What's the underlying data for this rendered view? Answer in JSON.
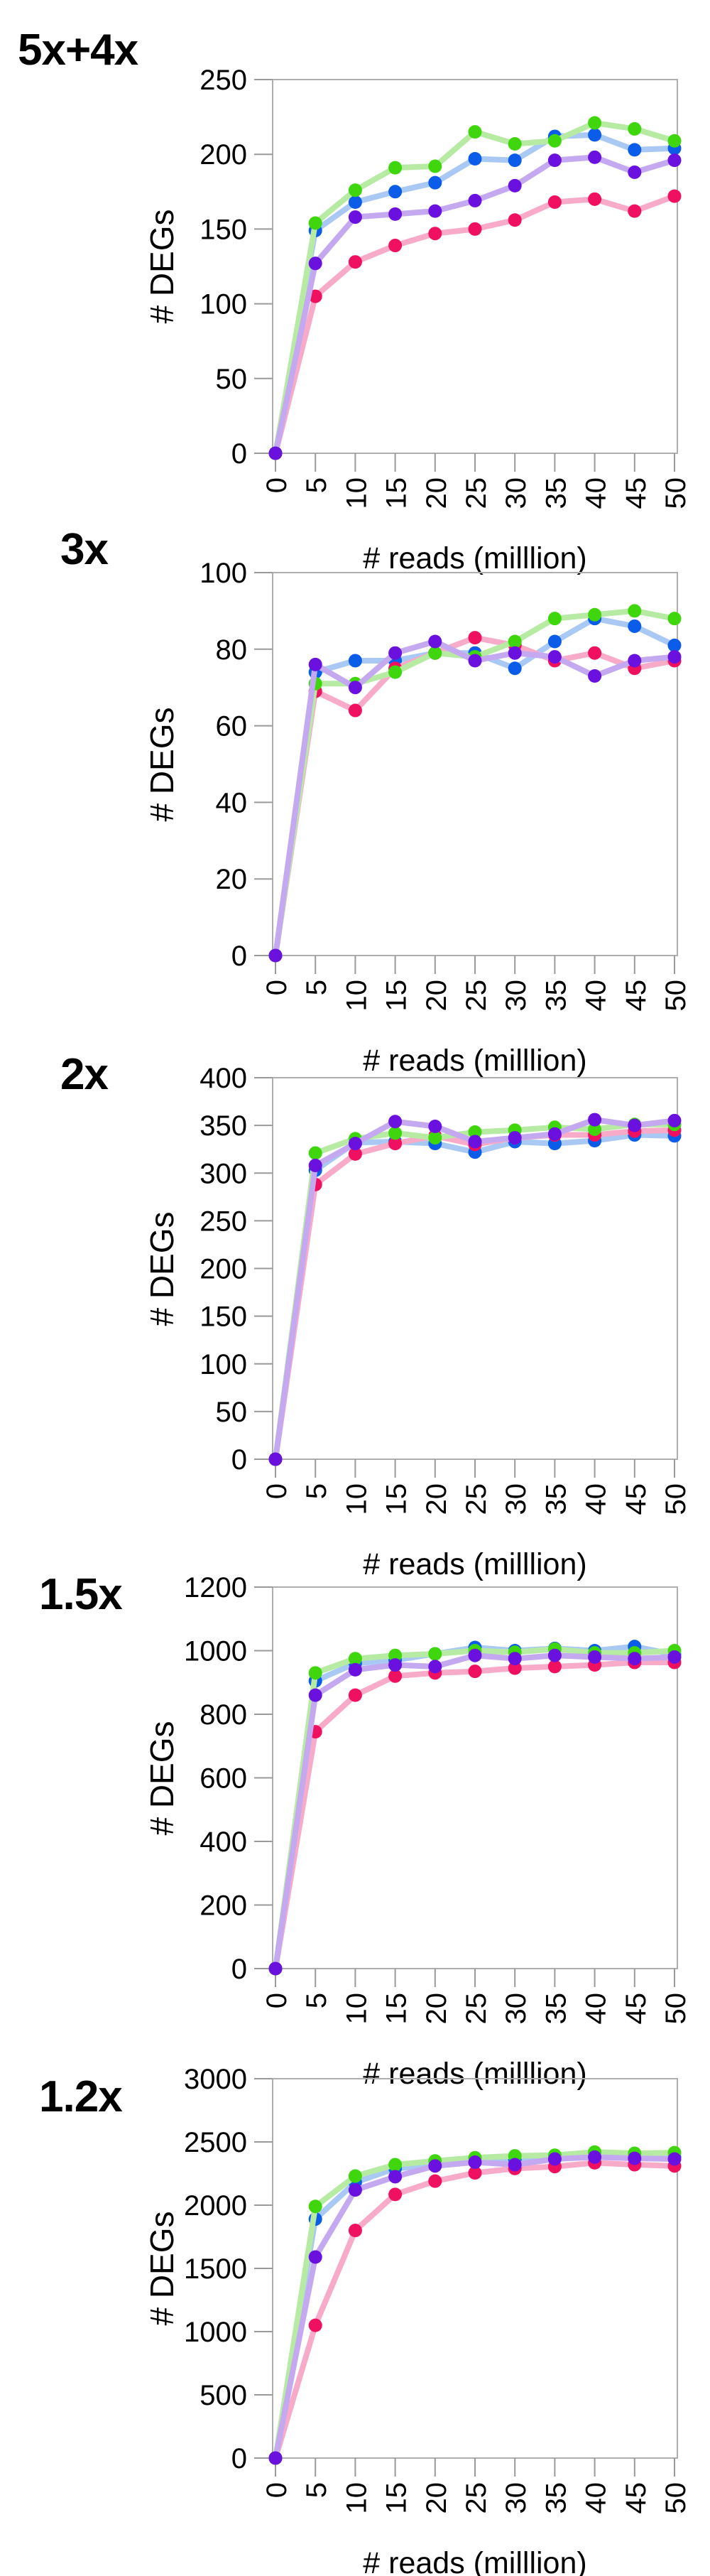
{
  "figure_title": "",
  "axis": {
    "x_label": "# reads (milllion)",
    "y_label": "# DEGs",
    "x_ticks": [
      0,
      5,
      10,
      15,
      20,
      25,
      30,
      35,
      40,
      45,
      50
    ]
  },
  "colors": {
    "frame": "#aeaeae",
    "tick": "#9a9a9a",
    "text": "#000000"
  },
  "chart_data": [
    {
      "type": "line",
      "title": "5x+4x",
      "xlabel": "# reads (milllion)",
      "ylabel": "# DEGs",
      "x": [
        0,
        5,
        10,
        15,
        20,
        25,
        30,
        35,
        40,
        45,
        50
      ],
      "ylim": [
        0,
        250
      ],
      "ytick_step": 50,
      "grid": false,
      "legend": "none",
      "series": [
        {
          "name": "green",
          "marker_color": "#3fd60e",
          "line_color": "#b7eba4",
          "values": [
            0,
            154,
            176,
            191,
            192,
            215,
            207,
            209,
            221,
            217,
            209
          ]
        },
        {
          "name": "blue",
          "marker_color": "#0b5ce8",
          "line_color": "#a9c9f4",
          "values": [
            0,
            149,
            168,
            175,
            181,
            197,
            196,
            212,
            213,
            203,
            204
          ]
        },
        {
          "name": "purple",
          "marker_color": "#6a11e0",
          "line_color": "#c5a9f0",
          "values": [
            0,
            127,
            158,
            160,
            162,
            169,
            179,
            196,
            198,
            188,
            196
          ]
        },
        {
          "name": "pink",
          "marker_color": "#f01060",
          "line_color": "#f8abc9",
          "values": [
            0,
            105,
            128,
            139,
            147,
            150,
            156,
            168,
            170,
            162,
            172
          ]
        }
      ]
    },
    {
      "type": "line",
      "title": "3x",
      "xlabel": "# reads (milllion)",
      "ylabel": "# DEGs",
      "x": [
        0,
        5,
        10,
        15,
        20,
        25,
        30,
        35,
        40,
        45,
        50
      ],
      "ylim": [
        0,
        100
      ],
      "ytick_step": 20,
      "grid": false,
      "legend": "none",
      "series": [
        {
          "name": "green",
          "marker_color": "#3fd60e",
          "line_color": "#b7eba4",
          "values": [
            0,
            71,
            71,
            74,
            79,
            78,
            82,
            88,
            89,
            90,
            88
          ]
        },
        {
          "name": "blue",
          "marker_color": "#0b5ce8",
          "line_color": "#a9c9f4",
          "values": [
            0,
            74,
            77,
            77,
            79,
            79,
            75,
            82,
            88,
            86,
            81
          ]
        },
        {
          "name": "purple",
          "marker_color": "#6a11e0",
          "line_color": "#c5a9f0",
          "values": [
            0,
            76,
            70,
            79,
            82,
            77,
            79,
            78,
            73,
            77,
            78
          ]
        },
        {
          "name": "pink",
          "marker_color": "#f01060",
          "line_color": "#f8abc9",
          "values": [
            0,
            69,
            64,
            75,
            79,
            83,
            81,
            77,
            79,
            75,
            77
          ]
        }
      ]
    },
    {
      "type": "line",
      "title": "2x",
      "xlabel": "# reads (milllion)",
      "ylabel": "# DEGs",
      "x": [
        0,
        5,
        10,
        15,
        20,
        25,
        30,
        35,
        40,
        45,
        50
      ],
      "ylim": [
        0,
        400
      ],
      "ytick_step": 50,
      "grid": false,
      "legend": "none",
      "series": [
        {
          "name": "green",
          "marker_color": "#3fd60e",
          "line_color": "#b7eba4",
          "values": [
            0,
            321,
            336,
            342,
            337,
            343,
            345,
            348,
            346,
            351,
            351
          ]
        },
        {
          "name": "blue",
          "marker_color": "#0b5ce8",
          "line_color": "#a9c9f4",
          "values": [
            0,
            303,
            332,
            333,
            331,
            322,
            333,
            331,
            334,
            340,
            339
          ]
        },
        {
          "name": "purple",
          "marker_color": "#6a11e0",
          "line_color": "#c5a9f0",
          "values": [
            0,
            308,
            331,
            354,
            349,
            333,
            337,
            341,
            356,
            350,
            355
          ]
        },
        {
          "name": "pink",
          "marker_color": "#f01060",
          "line_color": "#f8abc9",
          "values": [
            0,
            288,
            320,
            331,
            339,
            330,
            337,
            340,
            340,
            344,
            345
          ]
        }
      ]
    },
    {
      "type": "line",
      "title": "1.5x",
      "xlabel": "# reads (milllion)",
      "ylabel": "# DEGs",
      "x": [
        0,
        5,
        10,
        15,
        20,
        25,
        30,
        35,
        40,
        45,
        50
      ],
      "ylim": [
        0,
        1200
      ],
      "ytick_step": 200,
      "grid": false,
      "legend": "none",
      "series": [
        {
          "name": "green",
          "marker_color": "#3fd60e",
          "line_color": "#b7eba4",
          "values": [
            0,
            930,
            975,
            985,
            990,
            1000,
            995,
            1005,
            993,
            993,
            1000
          ]
        },
        {
          "name": "blue",
          "marker_color": "#0b5ce8",
          "line_color": "#a9c9f4",
          "values": [
            0,
            905,
            960,
            970,
            990,
            1010,
            1000,
            1007,
            1000,
            1013,
            988
          ]
        },
        {
          "name": "purple",
          "marker_color": "#6a11e0",
          "line_color": "#c5a9f0",
          "values": [
            0,
            860,
            940,
            955,
            950,
            985,
            975,
            985,
            980,
            975,
            980
          ]
        },
        {
          "name": "pink",
          "marker_color": "#f01060",
          "line_color": "#f8abc9",
          "values": [
            0,
            745,
            860,
            920,
            930,
            935,
            945,
            950,
            955,
            963,
            963
          ]
        }
      ]
    },
    {
      "type": "line",
      "title": "1.2x",
      "xlabel": "# reads (milllion)",
      "ylabel": "# DEGs",
      "x": [
        0,
        5,
        10,
        15,
        20,
        25,
        30,
        35,
        40,
        45,
        50
      ],
      "ylim": [
        0,
        3000
      ],
      "ytick_step": 500,
      "grid": false,
      "legend": "none",
      "series": [
        {
          "name": "green",
          "marker_color": "#3fd60e",
          "line_color": "#b7eba4",
          "values": [
            0,
            1990,
            2230,
            2320,
            2350,
            2375,
            2390,
            2395,
            2420,
            2410,
            2415
          ]
        },
        {
          "name": "blue",
          "marker_color": "#0b5ce8",
          "line_color": "#a9c9f4",
          "values": [
            0,
            1890,
            2180,
            2290,
            2315,
            2345,
            2360,
            2370,
            2385,
            2380,
            2380
          ]
        },
        {
          "name": "purple",
          "marker_color": "#6a11e0",
          "line_color": "#c5a9f0",
          "values": [
            0,
            1590,
            2120,
            2225,
            2310,
            2340,
            2320,
            2365,
            2380,
            2370,
            2365
          ]
        },
        {
          "name": "pink",
          "marker_color": "#f01060",
          "line_color": "#f8abc9",
          "values": [
            0,
            1050,
            1800,
            2085,
            2190,
            2255,
            2290,
            2305,
            2335,
            2320,
            2310
          ]
        }
      ]
    }
  ]
}
